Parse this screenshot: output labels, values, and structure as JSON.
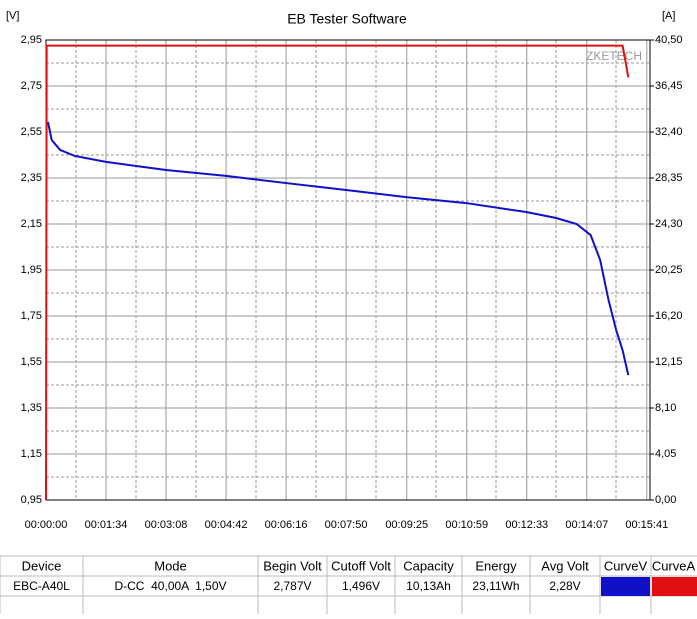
{
  "chart_data": {
    "type": "line",
    "title": "EB Tester Software",
    "y_unit": "[V]",
    "y2_unit": "[A]",
    "watermark": "ZKETECH",
    "xlim": [
      0,
      946
    ],
    "ylim": [
      0.95,
      2.95
    ],
    "y2lim": [
      0,
      40.5
    ],
    "xticks": [
      {
        "value": 0,
        "label": "00:00:00"
      },
      {
        "value": 94,
        "label": "00:01:34"
      },
      {
        "value": 188,
        "label": "00:03:08"
      },
      {
        "value": 282,
        "label": "00:04:42"
      },
      {
        "value": 376,
        "label": "00:06:16"
      },
      {
        "value": 470,
        "label": "00:07:50"
      },
      {
        "value": 565,
        "label": "00:09:25"
      },
      {
        "value": 659,
        "label": "00:10:59"
      },
      {
        "value": 753,
        "label": "00:12:33"
      },
      {
        "value": 847,
        "label": "00:14:07"
      },
      {
        "value": 941,
        "label": "00:15:41"
      }
    ],
    "yticks": [
      {
        "value": 0.95,
        "label": "0,95"
      },
      {
        "value": 1.15,
        "label": "1,15"
      },
      {
        "value": 1.35,
        "label": "1,35"
      },
      {
        "value": 1.55,
        "label": "1,55"
      },
      {
        "value": 1.75,
        "label": "1,75"
      },
      {
        "value": 1.95,
        "label": "1,95"
      },
      {
        "value": 2.15,
        "label": "2,15"
      },
      {
        "value": 2.35,
        "label": "2,35"
      },
      {
        "value": 2.55,
        "label": "2,55"
      },
      {
        "value": 2.75,
        "label": "2,75"
      },
      {
        "value": 2.95,
        "label": "2,95"
      }
    ],
    "y2ticks": [
      {
        "value": 0,
        "label": "0,00"
      },
      {
        "value": 4.05,
        "label": "4,05"
      },
      {
        "value": 8.1,
        "label": "8,10"
      },
      {
        "value": 12.15,
        "label": "12,15"
      },
      {
        "value": 16.2,
        "label": "16,20"
      },
      {
        "value": 20.25,
        "label": "20,25"
      },
      {
        "value": 24.3,
        "label": "24,30"
      },
      {
        "value": 28.35,
        "label": "28,35"
      },
      {
        "value": 32.4,
        "label": "32,40"
      },
      {
        "value": 36.45,
        "label": "36,45"
      },
      {
        "value": 40.5,
        "label": "40,50"
      }
    ],
    "grid": true,
    "series": [
      {
        "color": "#e01010",
        "axis": "y2",
        "x": [
          0,
          1,
          903,
          908,
          912
        ],
        "values": [
          0,
          40.0,
          40.0,
          38.5,
          37.2
        ]
      },
      {
        "color": "#1010c8",
        "axis": "y",
        "x": [
          3,
          9,
          22,
          45,
          94,
          188,
          282,
          376,
          470,
          564,
          658,
          752,
          799,
          831,
          853,
          868,
          881,
          893,
          903,
          912
        ],
        "values": [
          2.594,
          2.515,
          2.472,
          2.446,
          2.42,
          2.385,
          2.359,
          2.328,
          2.298,
          2.267,
          2.241,
          2.202,
          2.176,
          2.15,
          2.102,
          1.993,
          1.82,
          1.689,
          1.602,
          1.493
        ]
      }
    ]
  },
  "table": {
    "header": [
      "Device",
      "Mode",
      "Begin Volt",
      "Cutoff Volt",
      "Capacity",
      "Energy",
      "Avg Volt",
      "CurveV",
      "CurveA"
    ],
    "rows": [
      [
        "EBC-A40L",
        "D-CC  40,00A  1,50V",
        "2,787V",
        "1,496V",
        "10,13Ah",
        "23,11Wh",
        "2,28V"
      ]
    ]
  }
}
